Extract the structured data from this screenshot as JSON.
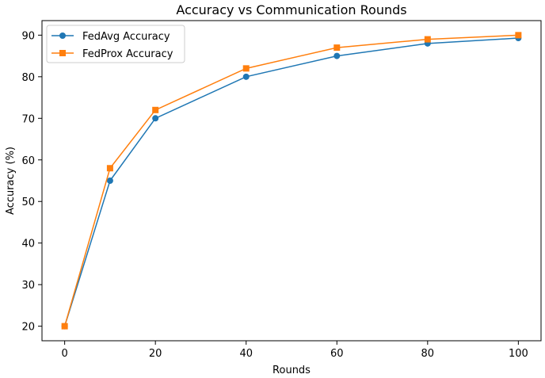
{
  "chart_data": {
    "type": "line",
    "title": "Accuracy vs Communication Rounds",
    "xlabel": "Rounds",
    "ylabel": "Accuracy (%)",
    "x": [
      0,
      10,
      20,
      40,
      60,
      80,
      100
    ],
    "xticks": [
      0,
      20,
      40,
      60,
      80,
      100
    ],
    "yticks": [
      20,
      30,
      40,
      50,
      60,
      70,
      80,
      90
    ],
    "xlim": [
      -5,
      105
    ],
    "ylim": [
      16.5,
      93.5
    ],
    "grid": false,
    "legend_position": "top-left",
    "series": [
      {
        "name": "FedAvg Accuracy",
        "values": [
          20,
          55,
          70,
          80,
          85,
          88,
          89.3
        ],
        "color": "#1f77b4",
        "marker": "circle"
      },
      {
        "name": "FedProx Accuracy",
        "values": [
          20,
          58,
          72,
          82,
          87,
          89,
          90
        ],
        "color": "#ff7f0e",
        "marker": "square"
      }
    ]
  }
}
